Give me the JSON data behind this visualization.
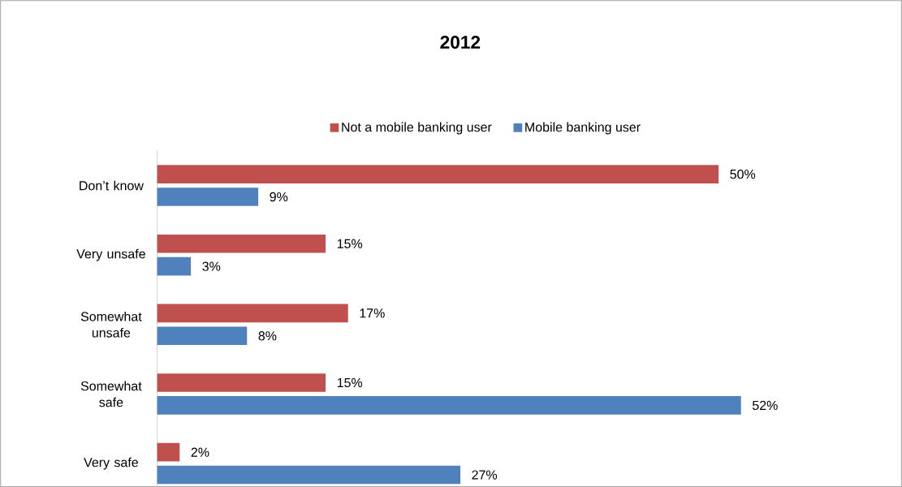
{
  "chart_data": {
    "type": "bar",
    "orientation": "horizontal",
    "title": "2012",
    "categories": [
      "Don’t know",
      "Very unsafe",
      "Somewhat unsafe",
      "Somewhat safe",
      "Very safe"
    ],
    "legend": "top",
    "series": [
      {
        "name": "Not a mobile banking user",
        "color": "#c0504d",
        "values": [
          50,
          15,
          17,
          15,
          2
        ],
        "value_labels": [
          "50%",
          "15%",
          "17%",
          "15%",
          "2%"
        ]
      },
      {
        "name": "Mobile banking user",
        "color": "#4f81bd",
        "values": [
          9,
          3,
          8,
          52,
          27
        ],
        "value_labels": [
          "9%",
          "3%",
          "8%",
          "52%",
          "27%"
        ]
      }
    ]
  }
}
